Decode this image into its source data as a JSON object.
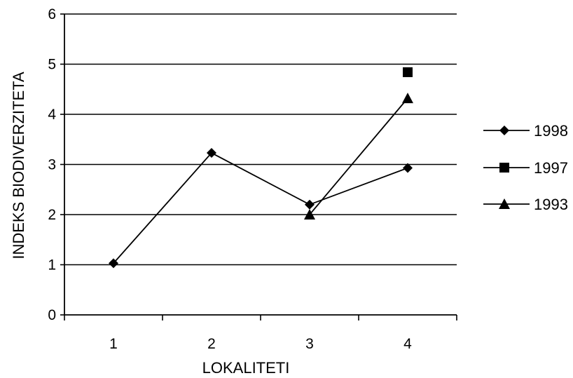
{
  "chart_data": {
    "type": "line",
    "xlabel": "LOKALITETI",
    "ylabel": "INDEKS BIODIVERZITETA",
    "categories": [
      "1",
      "2",
      "3",
      "4"
    ],
    "ylim": [
      0,
      6
    ],
    "yticks": [
      "0",
      "1",
      "2",
      "3",
      "4",
      "5",
      "6"
    ],
    "grid": true,
    "legend_position": "right",
    "series": [
      {
        "name": "1998",
        "marker": "diamond",
        "values": [
          1.03,
          3.23,
          2.2,
          2.93
        ]
      },
      {
        "name": "1997",
        "marker": "square",
        "values": [
          null,
          null,
          null,
          4.84
        ]
      },
      {
        "name": "1993",
        "marker": "triangle",
        "values": [
          null,
          null,
          2.0,
          4.32
        ]
      }
    ],
    "color": "#000000"
  }
}
